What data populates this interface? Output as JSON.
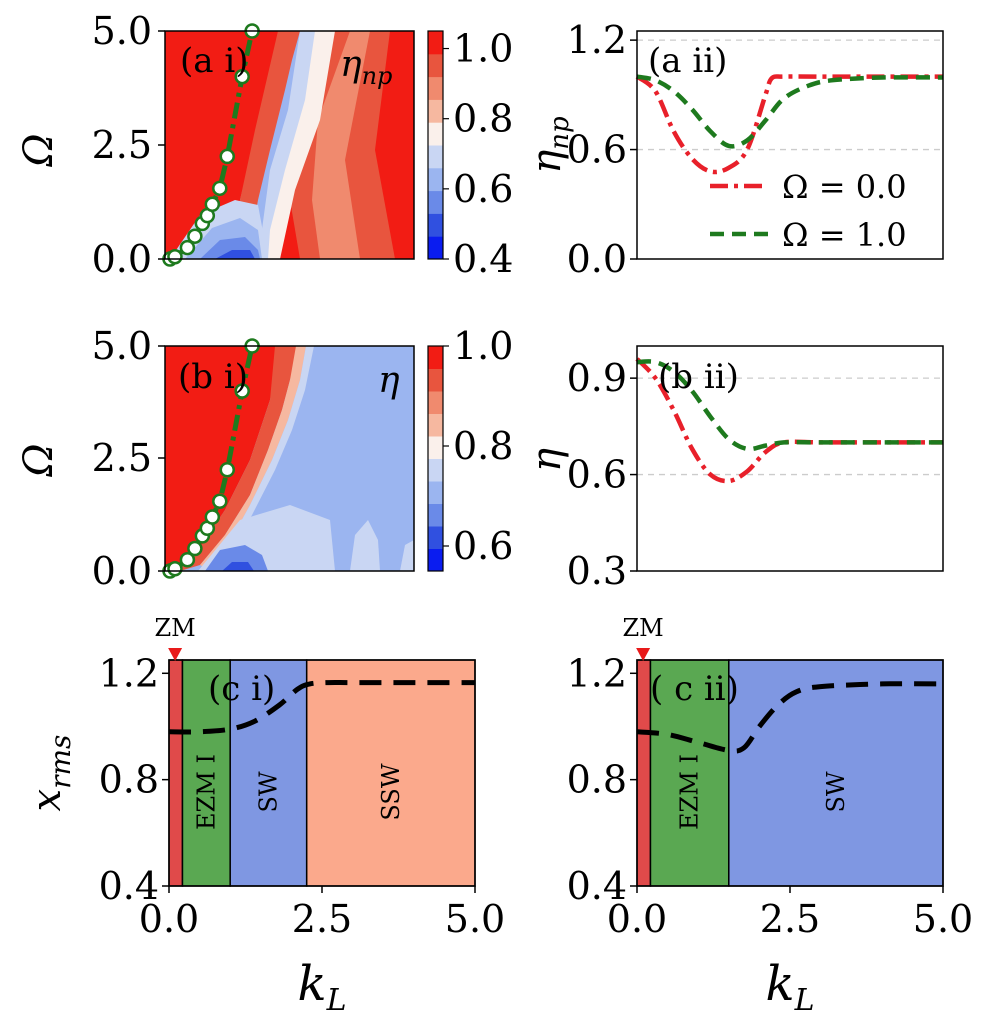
{
  "colors": {
    "red": "#e8202a",
    "green": "#1e7a1e",
    "black": "#000000",
    "zm": "#e04a4a",
    "ezm": "#5aa852",
    "sw": "#7f97e2",
    "ssw": "#fba98c",
    "grid": "#cccccc",
    "cmap": [
      "#0a1cf0",
      "#3050e0",
      "#6a8ae8",
      "#9bb5f0",
      "#c9d6f3",
      "#faf0eb",
      "#f6b8a0",
      "#f08a6e",
      "#e8553e",
      "#f21c14"
    ]
  },
  "chart_data": [
    {
      "id": "a_i",
      "type": "heatmap",
      "panel_label": "(a i)",
      "quantity_label": "η_np",
      "ylabel": "Ω",
      "xlim": [
        0,
        5.0
      ],
      "ylim": [
        0,
        5.0
      ],
      "yticks": [
        "0.0",
        "2.5",
        "5.0"
      ],
      "colorbar": {
        "range": [
          0.4,
          1.05
        ],
        "ticks": [
          "0.4",
          "0.6",
          "0.8",
          "1.0"
        ],
        "tick_values": [
          0.4,
          0.6,
          0.8,
          1.0
        ]
      },
      "boundary_points": {
        "x": [
          0.1,
          0.2,
          0.45,
          0.6,
          0.75,
          0.85,
          0.95,
          1.1,
          1.25,
          1.55,
          1.75
        ],
        "y": [
          0.0,
          0.05,
          0.25,
          0.5,
          0.78,
          0.95,
          1.2,
          1.55,
          2.25,
          4.0,
          5.0
        ]
      }
    },
    {
      "id": "a_ii",
      "type": "line",
      "panel_label": "(a ii)",
      "ylabel": "η_np",
      "xlim": [
        0,
        5.0
      ],
      "ylim": [
        0,
        1.25
      ],
      "yticks": [
        "0.0",
        "0.6",
        "1.2"
      ],
      "ytick_values": [
        0.0,
        0.6,
        1.2
      ],
      "gridlines": [
        0.6,
        1.2
      ],
      "series": [
        {
          "name": "Ω = 0.0",
          "style": "dashdot",
          "color": "red",
          "x": [
            0,
            0.3,
            0.6,
            0.9,
            1.2,
            1.5,
            1.8,
            2.1,
            2.2,
            2.4,
            3.0,
            4.0,
            5.0
          ],
          "y": [
            1.0,
            0.92,
            0.7,
            0.55,
            0.48,
            0.5,
            0.6,
            0.9,
            0.99,
            1.0,
            1.0,
            1.0,
            1.0
          ]
        },
        {
          "name": "Ω = 1.0",
          "style": "dashed",
          "color": "green",
          "x": [
            0,
            0.3,
            0.6,
            0.9,
            1.2,
            1.5,
            1.8,
            2.1,
            2.4,
            2.8,
            3.2,
            4.0,
            5.0
          ],
          "y": [
            1.0,
            0.98,
            0.92,
            0.82,
            0.7,
            0.62,
            0.65,
            0.76,
            0.88,
            0.95,
            0.98,
            0.995,
            0.995
          ]
        }
      ]
    },
    {
      "id": "b_i",
      "type": "heatmap",
      "panel_label": "(b i)",
      "quantity_label": "η",
      "ylabel": "Ω",
      "xlim": [
        0,
        5.0
      ],
      "ylim": [
        0,
        5.0
      ],
      "yticks": [
        "0.0",
        "2.5",
        "5.0"
      ],
      "colorbar": {
        "range": [
          0.55,
          1.0
        ],
        "ticks": [
          "0.6",
          "0.8",
          "1.0"
        ],
        "tick_values": [
          0.6,
          0.8,
          1.0
        ]
      },
      "boundary_points": {
        "x": [
          0.1,
          0.2,
          0.45,
          0.6,
          0.75,
          0.85,
          0.95,
          1.1,
          1.25,
          1.55,
          1.75
        ],
        "y": [
          0.0,
          0.05,
          0.25,
          0.5,
          0.78,
          0.95,
          1.2,
          1.55,
          2.25,
          4.0,
          5.0
        ]
      }
    },
    {
      "id": "b_ii",
      "type": "line",
      "panel_label": "(b ii)",
      "ylabel": "η",
      "xlim": [
        0,
        5.0
      ],
      "ylim": [
        0.3,
        1.0
      ],
      "yticks": [
        "0.3",
        "0.6",
        "0.9"
      ],
      "ytick_values": [
        0.3,
        0.6,
        0.9
      ],
      "gridlines": [
        0.6,
        0.9
      ],
      "series": [
        {
          "name": "Ω = 0.0",
          "style": "dashdot",
          "color": "red",
          "x": [
            0,
            0.3,
            0.6,
            0.9,
            1.2,
            1.5,
            1.8,
            2.1,
            2.4,
            3.0,
            4.0,
            5.0
          ],
          "y": [
            0.96,
            0.9,
            0.8,
            0.68,
            0.6,
            0.58,
            0.61,
            0.67,
            0.7,
            0.7,
            0.7,
            0.7
          ]
        },
        {
          "name": "Ω = 1.0",
          "style": "dashed",
          "color": "green",
          "x": [
            0,
            0.3,
            0.6,
            0.9,
            1.2,
            1.5,
            1.8,
            2.1,
            2.4,
            3.0,
            4.0,
            5.0
          ],
          "y": [
            0.95,
            0.95,
            0.92,
            0.86,
            0.78,
            0.71,
            0.68,
            0.69,
            0.7,
            0.7,
            0.7,
            0.7
          ]
        }
      ]
    },
    {
      "id": "c_i",
      "type": "line",
      "panel_label": "(c i)",
      "ylabel": "x_rms",
      "xlabel": "k_L",
      "xlim": [
        0,
        5.0
      ],
      "ylim": [
        0.4,
        1.25
      ],
      "xticks": [
        "0.0",
        "2.5",
        "5.0"
      ],
      "xtick_values": [
        0,
        2.5,
        5.0
      ],
      "yticks": [
        "0.4",
        "0.8",
        "1.2"
      ],
      "ytick_values": [
        0.4,
        0.8,
        1.2
      ],
      "marker_label": "ZM",
      "marker_x": 0.1,
      "regions": [
        {
          "name": "",
          "x0": 0,
          "x1": 0.22,
          "color": "zm"
        },
        {
          "name": "EZM I",
          "x0": 0.22,
          "x1": 1.0,
          "color": "ezm"
        },
        {
          "name": "SW",
          "x0": 1.0,
          "x1": 2.25,
          "color": "sw"
        },
        {
          "name": "SSW",
          "x0": 2.25,
          "x1": 5.0,
          "color": "ssw"
        }
      ],
      "series": [
        {
          "name": "x_rms",
          "style": "dashed",
          "color": "black",
          "x": [
            0,
            0.5,
            1.0,
            1.4,
            1.8,
            2.1,
            2.3,
            2.6,
            3.0,
            4.0,
            5.0
          ],
          "y": [
            0.98,
            0.98,
            0.99,
            1.02,
            1.08,
            1.14,
            1.16,
            1.165,
            1.165,
            1.165,
            1.165
          ]
        }
      ]
    },
    {
      "id": "c_ii",
      "type": "line",
      "panel_label": "( c ii)",
      "ylabel": "",
      "xlabel": "k_L",
      "xlim": [
        0,
        5.0
      ],
      "ylim": [
        0.4,
        1.25
      ],
      "xticks": [
        "0.0",
        "2.5",
        "5.0"
      ],
      "xtick_values": [
        0,
        2.5,
        5.0
      ],
      "yticks": [
        "0.4",
        "0.8",
        "1.2"
      ],
      "ytick_values": [
        0.4,
        0.8,
        1.2
      ],
      "marker_label": "ZM",
      "marker_x": 0.1,
      "regions": [
        {
          "name": "",
          "x0": 0,
          "x1": 0.22,
          "color": "zm"
        },
        {
          "name": "EZM I",
          "x0": 0.22,
          "x1": 1.5,
          "color": "ezm"
        },
        {
          "name": "SW",
          "x0": 1.5,
          "x1": 5.0,
          "color": "sw"
        }
      ],
      "series": [
        {
          "name": "x_rms",
          "style": "dashed",
          "color": "black",
          "x": [
            0,
            0.5,
            1.0,
            1.5,
            1.75,
            2.0,
            2.3,
            2.6,
            3.0,
            4.0,
            5.0
          ],
          "y": [
            0.98,
            0.97,
            0.94,
            0.91,
            0.92,
            1.0,
            1.08,
            1.13,
            1.15,
            1.16,
            1.16
          ]
        }
      ]
    }
  ],
  "legend": {
    "entries": [
      "Ω = 0.0",
      "Ω = 1.0"
    ]
  }
}
